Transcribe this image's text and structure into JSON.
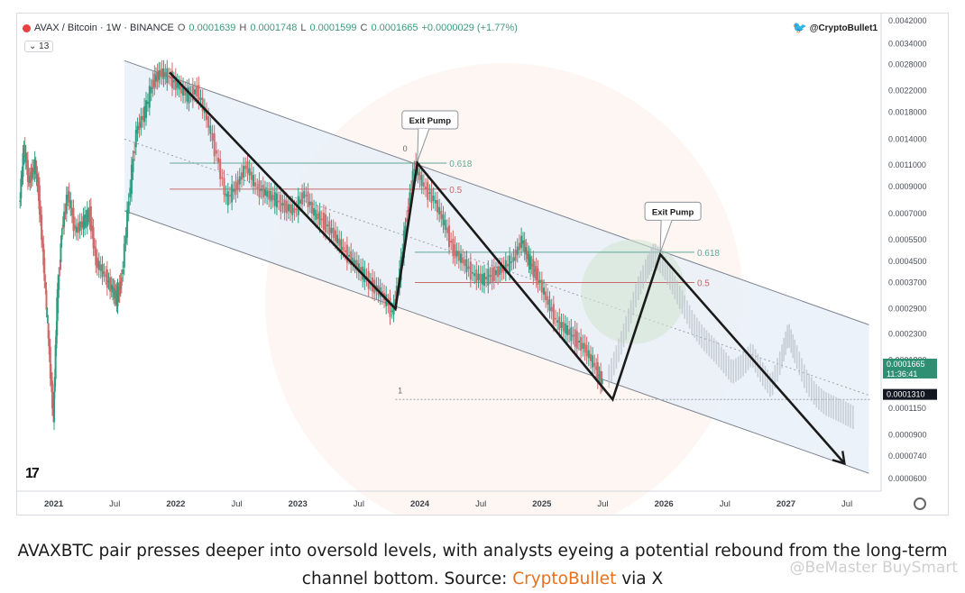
{
  "header": {
    "symbol": "AVAX / Bitcoin · 1W · BINANCE",
    "open_label": "O",
    "open": "0.0001639",
    "high_label": "H",
    "high": "0.0001748",
    "low_label": "L",
    "low": "0.0001599",
    "close_label": "C",
    "close": "0.0001665",
    "change": "+0.0000029 (+1.77%)",
    "indicator_badge": "⌄ 13",
    "handle": "@CryptoBullet1"
  },
  "chart_data": {
    "type": "line",
    "title": "AVAX / Bitcoin · 1W · BINANCE",
    "y_scale": "log",
    "y_ticks": [
      "0.0042000",
      "0.0034000",
      "0.0028000",
      "0.0022000",
      "0.0018000",
      "0.0014000",
      "0.0011000",
      "0.0009000",
      "0.0007000",
      "0.0005500",
      "0.0004500",
      "0.0003700",
      "0.0002900",
      "0.0002300",
      "0.0001800",
      "0.0001150",
      "0.0000900",
      "0.0000740",
      "0.0000600"
    ],
    "y_tick_values": [
      0.0042,
      0.0034,
      0.0028,
      0.0022,
      0.0018,
      0.0014,
      0.0011,
      0.0009,
      0.0007,
      0.00055,
      0.00045,
      0.00037,
      0.00029,
      0.00023,
      0.00018,
      0.000115,
      9e-05,
      7.4e-05,
      6e-05
    ],
    "x_ticks": [
      "2021",
      "Jul",
      "2022",
      "Jul",
      "2023",
      "Jul",
      "2024",
      "Jul",
      "2025",
      "Jul",
      "2026",
      "Jul",
      "2027",
      "Jul"
    ],
    "x_tick_values": [
      2021.0,
      2021.5,
      2022.0,
      2022.5,
      2023.0,
      2023.5,
      2024.0,
      2024.5,
      2025.0,
      2025.5,
      2026.0,
      2026.5,
      2027.0,
      2027.5
    ],
    "price_series": [
      [
        2020.72,
        0.00075
      ],
      [
        2020.76,
        0.0013
      ],
      [
        2020.8,
        0.00095
      ],
      [
        2020.85,
        0.0011
      ],
      [
        2020.88,
        0.00085
      ],
      [
        2020.92,
        0.00045
      ],
      [
        2020.96,
        0.00022
      ],
      [
        2021.0,
        0.000105
      ],
      [
        2021.03,
        0.0003
      ],
      [
        2021.07,
        0.0006
      ],
      [
        2021.12,
        0.00085
      ],
      [
        2021.18,
        0.0006
      ],
      [
        2021.25,
        0.00065
      ],
      [
        2021.3,
        0.0007
      ],
      [
        2021.35,
        0.00045
      ],
      [
        2021.42,
        0.0004
      ],
      [
        2021.48,
        0.00035
      ],
      [
        2021.52,
        0.00032
      ],
      [
        2021.56,
        0.00038
      ],
      [
        2021.62,
        0.0008
      ],
      [
        2021.68,
        0.0015
      ],
      [
        2021.75,
        0.0018
      ],
      [
        2021.82,
        0.0024
      ],
      [
        2021.88,
        0.0026
      ],
      [
        2021.95,
        0.0025
      ],
      [
        2022.02,
        0.0023
      ],
      [
        2022.1,
        0.0021
      ],
      [
        2022.18,
        0.0022
      ],
      [
        2022.26,
        0.0017
      ],
      [
        2022.34,
        0.0012
      ],
      [
        2022.42,
        0.0008
      ],
      [
        2022.5,
        0.0009
      ],
      [
        2022.58,
        0.0011
      ],
      [
        2022.66,
        0.0009
      ],
      [
        2022.74,
        0.00085
      ],
      [
        2022.82,
        0.0008
      ],
      [
        2022.9,
        0.00075
      ],
      [
        2022.98,
        0.00072
      ],
      [
        2023.06,
        0.00085
      ],
      [
        2023.14,
        0.0007
      ],
      [
        2023.22,
        0.00065
      ],
      [
        2023.3,
        0.00058
      ],
      [
        2023.38,
        0.0005
      ],
      [
        2023.46,
        0.00045
      ],
      [
        2023.54,
        0.0004
      ],
      [
        2023.62,
        0.00036
      ],
      [
        2023.7,
        0.00033
      ],
      [
        2023.78,
        0.00028
      ],
      [
        2023.84,
        0.0004
      ],
      [
        2023.9,
        0.0007
      ],
      [
        2023.96,
        0.0011
      ],
      [
        2024.04,
        0.0009
      ],
      [
        2024.12,
        0.0008
      ],
      [
        2024.2,
        0.00065
      ],
      [
        2024.28,
        0.0005
      ],
      [
        2024.36,
        0.00045
      ],
      [
        2024.44,
        0.0004
      ],
      [
        2024.52,
        0.00038
      ],
      [
        2024.6,
        0.0004
      ],
      [
        2024.68,
        0.00042
      ],
      [
        2024.76,
        0.00045
      ],
      [
        2024.84,
        0.00055
      ],
      [
        2024.9,
        0.00045
      ],
      [
        2024.96,
        0.0004
      ],
      [
        2025.04,
        0.00032
      ],
      [
        2025.12,
        0.00026
      ],
      [
        2025.2,
        0.00024
      ],
      [
        2025.28,
        0.00022
      ],
      [
        2025.36,
        0.0002
      ],
      [
        2025.44,
        0.00017
      ],
      [
        2025.5,
        0.000145
      ]
    ],
    "projection_series": [
      [
        2025.54,
        0.00015
      ],
      [
        2025.62,
        0.00019
      ],
      [
        2025.7,
        0.00025
      ],
      [
        2025.78,
        0.00034
      ],
      [
        2025.86,
        0.00042
      ],
      [
        2025.92,
        0.00048
      ],
      [
        2026.0,
        0.00043
      ],
      [
        2026.08,
        0.00036
      ],
      [
        2026.16,
        0.0003
      ],
      [
        2026.24,
        0.00025
      ],
      [
        2026.32,
        0.00022
      ],
      [
        2026.4,
        0.0002
      ],
      [
        2026.48,
        0.00018
      ],
      [
        2026.56,
        0.00016
      ],
      [
        2026.64,
        0.00017
      ],
      [
        2026.72,
        0.00019
      ],
      [
        2026.8,
        0.00016
      ],
      [
        2026.88,
        0.00014
      ],
      [
        2026.96,
        0.00018
      ],
      [
        2027.02,
        0.00023
      ],
      [
        2027.08,
        0.00019
      ],
      [
        2027.16,
        0.00015
      ],
      [
        2027.24,
        0.00013
      ],
      [
        2027.32,
        0.00012
      ],
      [
        2027.4,
        0.000115
      ],
      [
        2027.48,
        0.00011
      ],
      [
        2027.56,
        0.000105
      ]
    ],
    "channel_upper": [
      [
        2021.58,
        0.0029
      ],
      [
        2027.68,
        0.00025
      ]
    ],
    "channel_mid": [
      [
        2021.58,
        0.0014
      ],
      [
        2027.68,
        0.00013
      ]
    ],
    "channel_lower": [
      [
        2021.58,
        0.00072
      ],
      [
        2027.68,
        6.3e-05
      ]
    ],
    "zigzag": [
      [
        2021.95,
        0.0026
      ],
      [
        2023.8,
        0.00029
      ],
      [
        2023.98,
        0.00112
      ],
      [
        2025.58,
        0.000125
      ],
      [
        2025.97,
        0.00048
      ],
      [
        2027.48,
        6.9e-05
      ]
    ],
    "fib_levels_1": [
      {
        "label": "0.618",
        "value": 0.00112,
        "color": "#5fa79a"
      },
      {
        "label": "0.5",
        "value": 0.00088,
        "color": "#c66a6a"
      }
    ],
    "fib_levels_2": [
      {
        "label": "0.618",
        "value": 0.00049,
        "color": "#5fa79a"
      },
      {
        "label": "0.5",
        "value": 0.00037,
        "color": "#c66a6a"
      }
    ],
    "fib_0_label": "0",
    "fib_1_label": "1",
    "annotations": [
      {
        "text": "Exit Pump",
        "x": 2023.98,
        "y": 0.00112
      },
      {
        "text": "Exit Pump",
        "x": 2025.97,
        "y": 0.00048
      }
    ],
    "price_tags": [
      {
        "text": "0.0001665",
        "sub": "11:36:41",
        "value": 0.0001665,
        "color": "#2f8f73"
      },
      {
        "text": "0.0001310",
        "value": 0.000131,
        "color": "#131722"
      }
    ],
    "colors": {
      "up": "#2f9e80",
      "down": "#d06a6a",
      "channel_fill": "#e6eef8",
      "zigzag": "#1b1b1b"
    }
  },
  "caption": {
    "text": "AVAXBTC pair presses deeper into oversold levels, with analysts eyeing a potential rebound from the long-term channel bottom. Source: ",
    "source": "CryptoBullet",
    "suffix": " via X"
  },
  "watermark": "@BeMaster BuySmart"
}
